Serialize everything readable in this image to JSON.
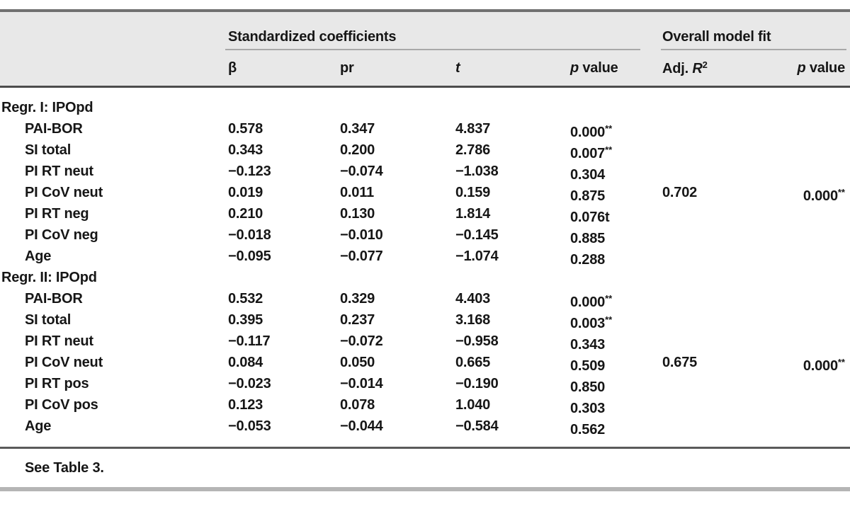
{
  "table": {
    "spanners": {
      "coefficients": "Standardized coefficients",
      "model_fit": "Overall model fit"
    },
    "columns": {
      "beta": "β",
      "pr": "pr",
      "t": "t",
      "p_italic": "p",
      "p_rest": " value",
      "adj_prefix": "Adj. ",
      "adj_r": "R",
      "adj_sup": "2"
    },
    "rows": [
      {
        "label": "Regr. I: IPOpd",
        "indent": false,
        "beta": "",
        "pr": "",
        "t": "",
        "p": "",
        "p_sup": "",
        "adj": "",
        "modelp": "",
        "modelp_sup": ""
      },
      {
        "label": "PAI-BOR",
        "indent": true,
        "beta": "0.578",
        "pr": "0.347",
        "t": "4.837",
        "p": "0.000",
        "p_sup": "**",
        "adj": "",
        "modelp": "",
        "modelp_sup": ""
      },
      {
        "label": "SI total",
        "indent": true,
        "beta": "0.343",
        "pr": "0.200",
        "t": "2.786",
        "p": "0.007",
        "p_sup": "**",
        "adj": "",
        "modelp": "",
        "modelp_sup": ""
      },
      {
        "label": "PI RT neut",
        "indent": true,
        "beta": "−0.123",
        "pr": "−0.074",
        "t": "−1.038",
        "p": "0.304",
        "p_sup": "",
        "adj": "",
        "modelp": "",
        "modelp_sup": ""
      },
      {
        "label": "PI CoV neut",
        "indent": true,
        "beta": "0.019",
        "pr": "0.011",
        "t": "0.159",
        "p": "0.875",
        "p_sup": "",
        "adj": "0.702",
        "modelp": "0.000",
        "modelp_sup": "**"
      },
      {
        "label": "PI RT neg",
        "indent": true,
        "beta": "0.210",
        "pr": "0.130",
        "t": "1.814",
        "p": "0.076t",
        "p_sup": "",
        "adj": "",
        "modelp": "",
        "modelp_sup": ""
      },
      {
        "label": "PI CoV neg",
        "indent": true,
        "beta": "−0.018",
        "pr": "−0.010",
        "t": "−0.145",
        "p": "0.885",
        "p_sup": "",
        "adj": "",
        "modelp": "",
        "modelp_sup": ""
      },
      {
        "label": "Age",
        "indent": true,
        "beta": "−0.095",
        "pr": "−0.077",
        "t": "−1.074",
        "p": "0.288",
        "p_sup": "",
        "adj": "",
        "modelp": "",
        "modelp_sup": ""
      },
      {
        "label": "Regr. II: IPOpd",
        "indent": false,
        "beta": "",
        "pr": "",
        "t": "",
        "p": "",
        "p_sup": "",
        "adj": "",
        "modelp": "",
        "modelp_sup": ""
      },
      {
        "label": "PAI-BOR",
        "indent": true,
        "beta": "0.532",
        "pr": "0.329",
        "t": "4.403",
        "p": "0.000",
        "p_sup": "**",
        "adj": "",
        "modelp": "",
        "modelp_sup": ""
      },
      {
        "label": "SI total",
        "indent": true,
        "beta": "0.395",
        "pr": "0.237",
        "t": "3.168",
        "p": "0.003",
        "p_sup": "**",
        "adj": "",
        "modelp": "",
        "modelp_sup": ""
      },
      {
        "label": "PI RT neut",
        "indent": true,
        "beta": "−0.117",
        "pr": "−0.072",
        "t": "−0.958",
        "p": "0.343",
        "p_sup": "",
        "adj": "",
        "modelp": "",
        "modelp_sup": ""
      },
      {
        "label": "PI CoV neut",
        "indent": true,
        "beta": "0.084",
        "pr": "0.050",
        "t": "0.665",
        "p": "0.509",
        "p_sup": "",
        "adj": "0.675",
        "modelp": "0.000",
        "modelp_sup": "**"
      },
      {
        "label": "PI RT pos",
        "indent": true,
        "beta": "−0.023",
        "pr": "−0.014",
        "t": "−0.190",
        "p": "0.850",
        "p_sup": "",
        "adj": "",
        "modelp": "",
        "modelp_sup": ""
      },
      {
        "label": "PI CoV pos",
        "indent": true,
        "beta": "0.123",
        "pr": "0.078",
        "t": "1.040",
        "p": "0.303",
        "p_sup": "",
        "adj": "",
        "modelp": "",
        "modelp_sup": ""
      },
      {
        "label": "Age",
        "indent": true,
        "beta": "−0.053",
        "pr": "−0.044",
        "t": "−0.584",
        "p": "0.562",
        "p_sup": "",
        "adj": "",
        "modelp": "",
        "modelp_sup": ""
      }
    ],
    "footnote": "See Table 3."
  },
  "colors": {
    "header_bg": "#e8e8e8",
    "rule_top": "#707070",
    "rule_header_bottom": "#4c4c4c",
    "rule_spanner": "#a8a8a8",
    "rule_footnote": "#5a5a5a",
    "rule_bottom": "#b5b5b5",
    "text": "#161616"
  }
}
